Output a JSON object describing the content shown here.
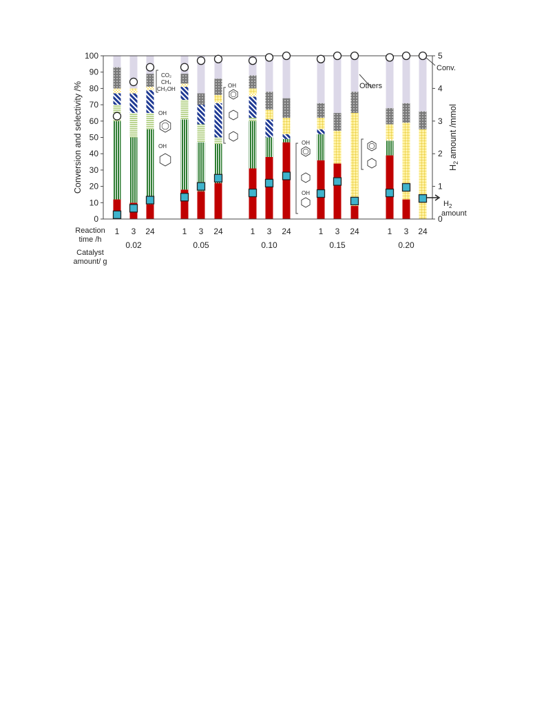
{
  "chart_data": {
    "type": "bar",
    "stacked": true,
    "ylabel": "Conversion and selectivity /%",
    "y2label_main": "H",
    "y2label_sub": "2",
    "y2label_rest": " amount /mmol",
    "ylim": [
      0,
      100
    ],
    "y2lim": [
      0,
      5
    ],
    "yticks": [
      "0",
      "10",
      "20",
      "30",
      "40",
      "50",
      "60",
      "70",
      "80",
      "90",
      "100"
    ],
    "y2ticks": [
      "0",
      "1",
      "2",
      "3",
      "4",
      "5"
    ],
    "row_label_time_1": "Reaction",
    "row_label_time_2": "time /h",
    "row_label_cat_1": "Catalyst",
    "row_label_cat_2": "amount/ g",
    "groups": [
      {
        "catalyst": "0.02",
        "times": [
          "1",
          "3",
          "24"
        ]
      },
      {
        "catalyst": "0.05",
        "times": [
          "1",
          "3",
          "24"
        ]
      },
      {
        "catalyst": "0.10",
        "times": [
          "1",
          "3",
          "24"
        ]
      },
      {
        "catalyst": "0.15",
        "times": [
          "1",
          "3",
          "24"
        ]
      },
      {
        "catalyst": "0.20",
        "times": [
          "1",
          "3",
          "24"
        ]
      }
    ],
    "component_order": [
      "cyclohexanol",
      "cyclohexanone",
      "phenol",
      "methoxycyclohexanol",
      "guaiacol",
      "cyclohexanediol",
      "hydroxycyclohexanone",
      "catechol",
      "benzene_cyclohexane",
      "gases",
      "others"
    ],
    "bars": [
      {
        "segments": [
          12,
          0,
          0,
          48,
          10,
          7,
          3,
          0,
          0,
          13,
          7
        ]
      },
      {
        "segments": [
          10,
          0,
          0,
          40,
          15,
          12,
          2,
          0,
          1,
          0,
          20
        ]
      },
      {
        "segments": [
          9,
          0,
          0,
          46,
          10,
          14,
          2,
          0,
          0,
          8,
          11
        ]
      },
      {
        "segments": [
          18,
          0,
          0,
          43,
          12,
          8,
          2,
          0,
          0,
          6,
          11
        ]
      },
      {
        "segments": [
          17,
          0,
          0,
          30,
          11,
          12,
          0,
          0,
          0,
          7,
          23
        ]
      },
      {
        "segments": [
          22,
          0,
          0,
          24,
          4,
          21,
          1,
          0,
          4,
          10,
          14
        ]
      },
      {
        "segments": [
          31,
          0,
          0,
          29,
          2,
          13,
          2,
          0,
          3,
          8,
          12
        ]
      },
      {
        "segments": [
          38,
          0,
          0,
          12,
          0,
          11,
          0,
          0,
          6,
          11,
          22
        ]
      },
      {
        "segments": [
          47,
          0,
          0,
          2,
          0,
          3,
          0,
          0,
          10,
          12,
          26
        ]
      },
      {
        "segments": [
          36,
          0,
          0,
          16,
          0,
          3,
          0,
          0,
          7,
          9,
          29
        ]
      },
      {
        "segments": [
          34,
          0,
          0,
          0,
          0,
          0,
          0,
          0,
          20,
          11,
          35
        ]
      },
      {
        "segments": [
          8,
          0,
          0,
          0,
          0,
          0,
          0,
          0,
          57,
          13,
          22
        ]
      },
      {
        "segments": [
          39,
          0,
          0,
          9,
          0,
          0,
          1,
          0,
          9,
          10,
          32
        ]
      },
      {
        "segments": [
          12,
          0,
          0,
          0,
          0,
          0,
          0,
          0,
          47,
          12,
          29
        ]
      },
      {
        "segments": [
          0,
          0,
          0,
          0,
          0,
          0,
          0,
          0,
          55,
          11,
          34
        ]
      }
    ],
    "conversion": [
      63,
      84,
      93,
      93,
      97,
      98,
      97,
      99,
      100,
      98,
      100,
      100,
      99,
      100,
      100
    ],
    "h2_amount": [
      0.13,
      0.33,
      0.58,
      0.67,
      1.0,
      1.25,
      0.8,
      1.1,
      1.32,
      0.78,
      1.15,
      0.55,
      0.8,
      0.97,
      0.63
    ],
    "annotations": {
      "conv": "Conv.",
      "others": "Others",
      "h2_main": "H",
      "h2_sub": "2",
      "h2_rest": "amount",
      "co2": "CO₂",
      "ch4": "CH₄",
      "ch3oh": "CH₃OH",
      "oh": "OH"
    },
    "colors": {
      "cyclohexanol": "#c00000",
      "linear_green": "#2e7d32",
      "light_green": "#d6e8b6",
      "navy": "#1f3a93",
      "yellow": "#ffe066",
      "gray": "#8a8a8a",
      "lavender": "#dcd8e8",
      "marker_blue": "#3fb3cc"
    }
  }
}
